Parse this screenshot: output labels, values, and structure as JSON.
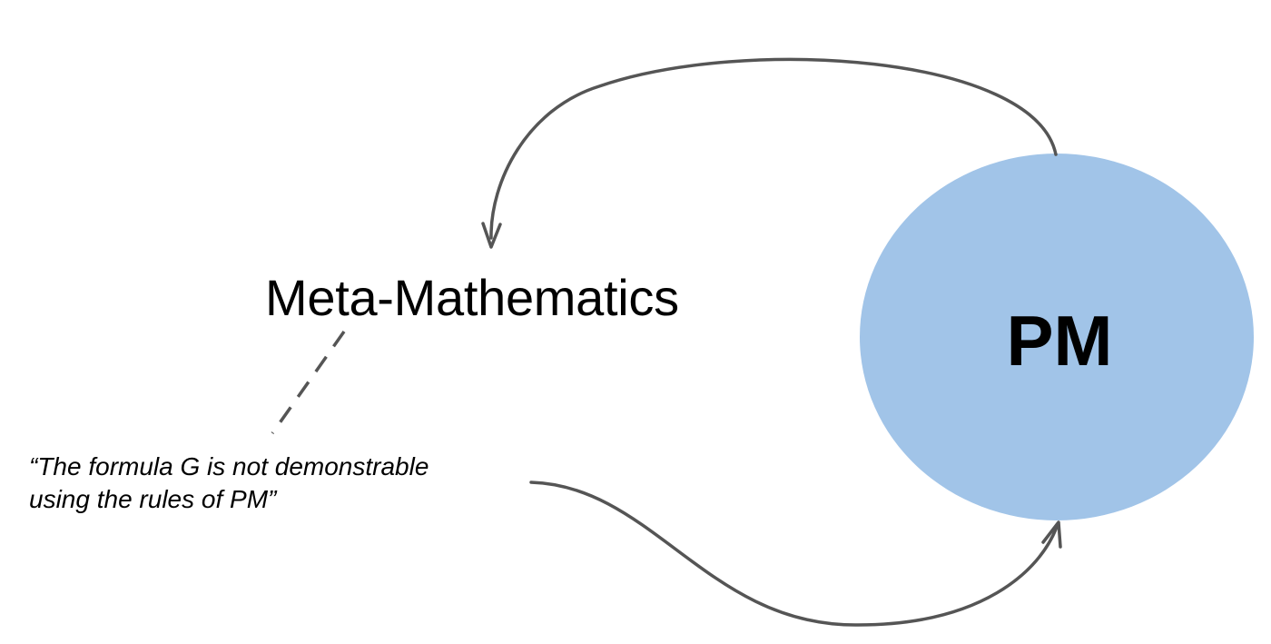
{
  "diagram": {
    "meta_label": "Meta-Mathematics",
    "pm_label": "PM",
    "quote_lines": [
      "“The formula G is not demonstrable",
      "using the rules of PM”"
    ]
  },
  "colors": {
    "pm_circle_fill": "#a1c4e8",
    "arrow_stroke": "#555555",
    "text": "#000000",
    "background": "#ffffff"
  }
}
